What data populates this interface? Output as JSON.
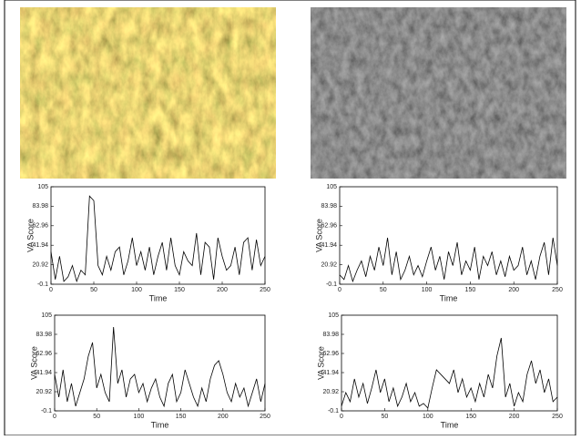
{
  "chart_data": [
    {
      "type": "line",
      "xlabel": "Time",
      "ylabel": "VA Score",
      "grid": false,
      "xlim": [
        0,
        250
      ],
      "xticks": [
        0,
        50,
        100,
        150,
        200,
        250
      ],
      "ylim": [
        -0.1,
        105
      ],
      "yticks": [
        -0.1,
        20.92,
        41.94,
        62.96,
        83.98,
        105
      ],
      "x": [
        0,
        5,
        10,
        15,
        20,
        25,
        30,
        35,
        40,
        45,
        50,
        55,
        60,
        65,
        70,
        75,
        80,
        85,
        90,
        95,
        100,
        105,
        110,
        115,
        120,
        125,
        130,
        135,
        140,
        145,
        150,
        155,
        160,
        165,
        170,
        175,
        180,
        185,
        190,
        195,
        200,
        205,
        210,
        215,
        220,
        225,
        230,
        235,
        240,
        245,
        250
      ],
      "series": [
        {
          "color": "#000000",
          "values": [
            35,
            5,
            30,
            3,
            8,
            20,
            3,
            15,
            10,
            95,
            90,
            20,
            10,
            30,
            15,
            35,
            40,
            10,
            25,
            50,
            20,
            35,
            15,
            40,
            10,
            30,
            45,
            15,
            50,
            20,
            10,
            35,
            25,
            20,
            55,
            10,
            45,
            40,
            5,
            50,
            30,
            15,
            20,
            40,
            10,
            45,
            50,
            15,
            48,
            20,
            30
          ]
        }
      ]
    },
    {
      "type": "line",
      "xlabel": "Time",
      "ylabel": "VA Score",
      "grid": false,
      "xlim": [
        0,
        250
      ],
      "xticks": [
        0,
        50,
        100,
        150,
        200,
        250
      ],
      "ylim": [
        -0.1,
        105
      ],
      "yticks": [
        -0.1,
        20.92,
        41.94,
        62.96,
        83.98,
        105
      ],
      "x": [
        0,
        5,
        10,
        15,
        20,
        25,
        30,
        35,
        40,
        45,
        50,
        55,
        60,
        65,
        70,
        75,
        80,
        85,
        90,
        95,
        100,
        105,
        110,
        115,
        120,
        125,
        130,
        135,
        140,
        145,
        150,
        155,
        160,
        165,
        170,
        175,
        180,
        185,
        190,
        195,
        200,
        205,
        210,
        215,
        220,
        225,
        230,
        235,
        240,
        245,
        250
      ],
      "series": [
        {
          "color": "#000000",
          "values": [
            10,
            5,
            20,
            3,
            15,
            25,
            8,
            30,
            15,
            40,
            20,
            50,
            10,
            35,
            5,
            15,
            30,
            10,
            20,
            8,
            25,
            40,
            15,
            30,
            5,
            35,
            20,
            45,
            10,
            25,
            15,
            40,
            5,
            30,
            20,
            35,
            10,
            25,
            8,
            30,
            15,
            20,
            40,
            10,
            25,
            5,
            30,
            45,
            10,
            50,
            20
          ]
        }
      ]
    },
    {
      "type": "line",
      "xlabel": "Time",
      "ylabel": "VA Score",
      "grid": false,
      "xlim": [
        0,
        250
      ],
      "xticks": [
        0,
        50,
        100,
        150,
        200,
        250
      ],
      "ylim": [
        -0.1,
        105
      ],
      "yticks": [
        -0.1,
        20.92,
        41.94,
        62.96,
        83.98,
        105
      ],
      "x": [
        0,
        5,
        10,
        15,
        20,
        25,
        30,
        35,
        40,
        45,
        50,
        55,
        60,
        65,
        70,
        75,
        80,
        85,
        90,
        95,
        100,
        105,
        110,
        115,
        120,
        125,
        130,
        135,
        140,
        145,
        150,
        155,
        160,
        165,
        170,
        175,
        180,
        185,
        190,
        195,
        200,
        205,
        210,
        215,
        220,
        225,
        230,
        235,
        240,
        245,
        250
      ],
      "series": [
        {
          "color": "#000000",
          "values": [
            40,
            15,
            45,
            10,
            30,
            5,
            20,
            35,
            60,
            75,
            25,
            40,
            20,
            10,
            92,
            30,
            45,
            15,
            35,
            40,
            20,
            30,
            10,
            25,
            35,
            15,
            5,
            30,
            40,
            10,
            20,
            45,
            30,
            15,
            5,
            25,
            10,
            35,
            50,
            55,
            40,
            20,
            10,
            30,
            15,
            25,
            5,
            20,
            35,
            10,
            30
          ]
        }
      ]
    },
    {
      "type": "line",
      "xlabel": "Time",
      "ylabel": "VA Score",
      "grid": false,
      "xlim": [
        0,
        250
      ],
      "xticks": [
        0,
        50,
        100,
        150,
        200,
        250
      ],
      "ylim": [
        -0.1,
        105
      ],
      "yticks": [
        -0.1,
        20.92,
        41.94,
        62.96,
        83.98,
        105
      ],
      "x": [
        0,
        5,
        10,
        15,
        20,
        25,
        30,
        35,
        40,
        45,
        50,
        55,
        60,
        65,
        70,
        75,
        80,
        85,
        90,
        95,
        100,
        105,
        110,
        115,
        120,
        125,
        130,
        135,
        140,
        145,
        150,
        155,
        160,
        165,
        170,
        175,
        180,
        185,
        190,
        195,
        200,
        205,
        210,
        215,
        220,
        225,
        230,
        235,
        240,
        245,
        250
      ],
      "series": [
        {
          "color": "#000000",
          "values": [
            5,
            20,
            10,
            35,
            15,
            30,
            8,
            25,
            45,
            20,
            35,
            10,
            25,
            5,
            15,
            30,
            10,
            20,
            5,
            8,
            3,
            25,
            45,
            40,
            35,
            30,
            45,
            20,
            35,
            15,
            25,
            10,
            30,
            15,
            40,
            25,
            60,
            80,
            15,
            30,
            5,
            20,
            10,
            40,
            55,
            30,
            45,
            20,
            35,
            10,
            15
          ]
        }
      ]
    }
  ]
}
